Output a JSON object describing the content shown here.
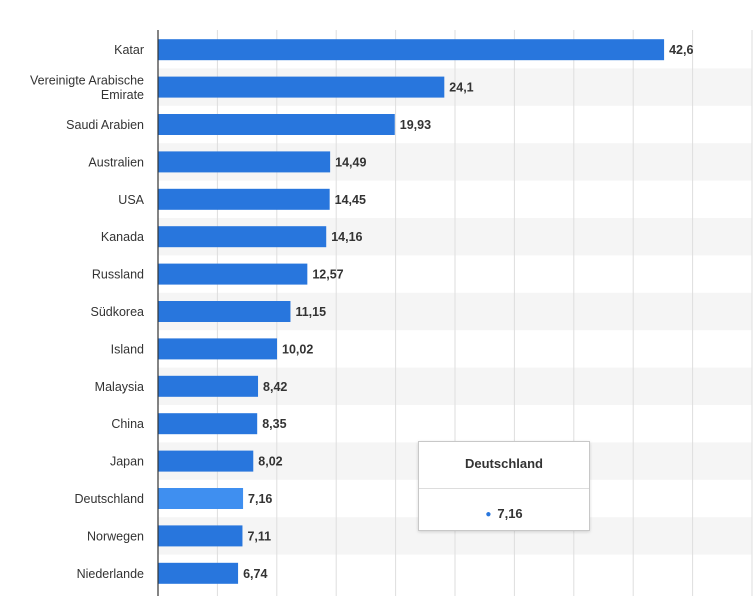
{
  "chart_data": {
    "type": "bar",
    "orientation": "horizontal",
    "categories": [
      "Katar",
      "Vereinigte Arabische Emirate",
      "Saudi Arabien",
      "Australien",
      "USA",
      "Kanada",
      "Russland",
      "Südkorea",
      "Island",
      "Malaysia",
      "China",
      "Japan",
      "Deutschland",
      "Norwegen",
      "Niederlande"
    ],
    "category_lines": [
      [
        "Katar"
      ],
      [
        "Vereinigte Arabische",
        "Emirate"
      ],
      [
        "Saudi Arabien"
      ],
      [
        "Australien"
      ],
      [
        "USA"
      ],
      [
        "Kanada"
      ],
      [
        "Russland"
      ],
      [
        "Südkorea"
      ],
      [
        "Island"
      ],
      [
        "Malaysia"
      ],
      [
        "China"
      ],
      [
        "Japan"
      ],
      [
        "Deutschland"
      ],
      [
        "Norwegen"
      ],
      [
        "Niederlande"
      ]
    ],
    "values": [
      42.6,
      24.1,
      19.93,
      14.49,
      14.45,
      14.16,
      12.57,
      11.15,
      10.02,
      8.42,
      8.35,
      8.02,
      7.16,
      7.11,
      6.74
    ],
    "value_labels": [
      "42,6",
      "24,1",
      "19,93",
      "14,49",
      "14,45",
      "14,16",
      "12,57",
      "11,15",
      "10,02",
      "8,42",
      "8,35",
      "8,02",
      "7,16",
      "7,11",
      "6,74"
    ],
    "highlight_index": 12,
    "xlim": [
      0,
      50
    ],
    "grid": true,
    "colors": {
      "bar": "#2876dd",
      "highlight": "#3f8ff0",
      "band": "#f5f5f5",
      "grid": "#dedede",
      "axis": "#333333"
    },
    "tooltip": {
      "title": "Deutschland",
      "value": "7,16"
    }
  }
}
